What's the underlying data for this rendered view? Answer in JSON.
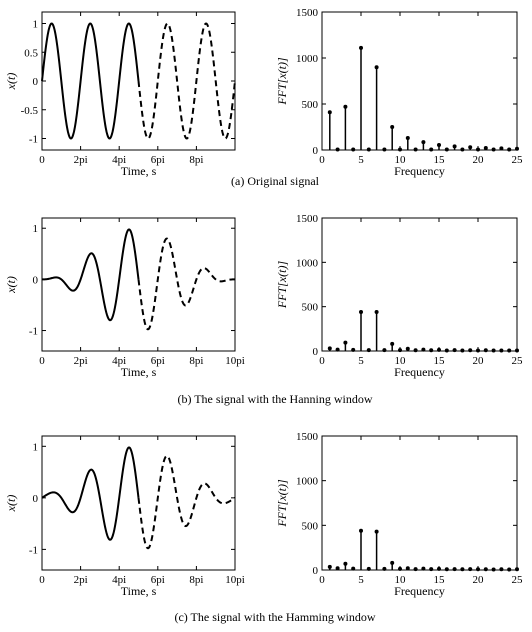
{
  "captions": {
    "a": "(a) Original signal",
    "b": "(b) The signal with the Hanning window",
    "c": "(c) The signal with the Hamming window"
  },
  "colors": {
    "line": "#000000",
    "axes": "#000000",
    "background": "#ffffff"
  },
  "chart_data": [
    {
      "type": "line",
      "id": "time-original",
      "xlabel": "Time, s",
      "ylabel": "x(t)",
      "xlim": [
        0,
        31.4159
      ],
      "ylim": [
        -1.2,
        1.2
      ],
      "xticks": [
        0,
        6.2832,
        12.5664,
        18.8496,
        25.1327
      ],
      "xticklabels": [
        "0",
        "2pi",
        "4pi",
        "6pi",
        "8pi"
      ],
      "yticks": [
        -1,
        -0.5,
        0,
        0.5,
        1
      ],
      "yticklabels": [
        "-1",
        "-0.5",
        "0",
        "0.5",
        "1"
      ],
      "series": [
        {
          "style": "solid",
          "function": "sin(t)",
          "window": "none",
          "x_range": [
            0,
            15.708
          ]
        },
        {
          "style": "dashed",
          "function": "sin(t)",
          "window": "none",
          "x_range": [
            15.708,
            31.4159
          ]
        }
      ]
    },
    {
      "type": "stem",
      "id": "fft-original",
      "xlabel": "Frequency",
      "ylabel": "FFT[x(t)]",
      "xlim": [
        0,
        25
      ],
      "ylim": [
        0,
        1500
      ],
      "xticks": [
        0,
        5,
        10,
        15,
        20,
        25
      ],
      "yticks": [
        0,
        500,
        1000,
        1500
      ],
      "x": [
        1,
        2,
        3,
        4,
        5,
        6,
        7,
        8,
        9,
        10,
        11,
        12,
        13,
        14,
        15,
        16,
        17,
        18,
        19,
        20,
        21,
        22,
        23,
        24,
        25
      ],
      "values": [
        410,
        5,
        470,
        5,
        1110,
        5,
        900,
        5,
        250,
        5,
        130,
        5,
        85,
        5,
        55,
        5,
        40,
        5,
        30,
        5,
        22,
        5,
        18,
        5,
        14
      ]
    },
    {
      "type": "line",
      "id": "time-hanning",
      "xlabel": "Time, s",
      "ylabel": "x(t)",
      "xlim": [
        0,
        31.4159
      ],
      "ylim": [
        -1.4,
        1.2
      ],
      "xticks": [
        0,
        6.2832,
        12.5664,
        18.8496,
        25.1327,
        31.4159
      ],
      "xticklabels": [
        "0",
        "2pi",
        "4pi",
        "6pi",
        "8pi",
        "10pi"
      ],
      "yticks": [
        -1,
        0,
        1
      ],
      "yticklabels": [
        "-1",
        "0",
        "1"
      ],
      "series": [
        {
          "style": "solid",
          "function": "sin(t)",
          "window": "hanning",
          "x_range": [
            0,
            15.708
          ]
        },
        {
          "style": "dashed",
          "function": "sin(t)",
          "window": "hanning",
          "x_range": [
            15.708,
            31.4159
          ]
        }
      ]
    },
    {
      "type": "stem",
      "id": "fft-hanning",
      "xlabel": "Frequency",
      "ylabel": "FFT[x(t)]",
      "xlim": [
        0,
        25
      ],
      "ylim": [
        0,
        1500
      ],
      "xticks": [
        0,
        5,
        10,
        15,
        20,
        25
      ],
      "yticks": [
        0,
        500,
        1000,
        1500
      ],
      "x": [
        1,
        2,
        3,
        4,
        5,
        6,
        7,
        8,
        9,
        10,
        11,
        12,
        13,
        14,
        15,
        16,
        17,
        18,
        19,
        20,
        21,
        22,
        23,
        24,
        25
      ],
      "values": [
        30,
        15,
        95,
        12,
        440,
        10,
        440,
        10,
        80,
        10,
        25,
        8,
        15,
        8,
        12,
        6,
        10,
        6,
        8,
        6,
        8,
        5,
        6,
        5,
        6
      ]
    },
    {
      "type": "line",
      "id": "time-hamming",
      "xlabel": "Time, s",
      "ylabel": "x(t)",
      "xlim": [
        0,
        31.4159
      ],
      "ylim": [
        -1.4,
        1.2
      ],
      "xticks": [
        0,
        6.2832,
        12.5664,
        18.8496,
        25.1327,
        31.4159
      ],
      "xticklabels": [
        "0",
        "2pi",
        "4pi",
        "6pi",
        "8pi",
        "10pi"
      ],
      "yticks": [
        -1,
        0,
        1
      ],
      "yticklabels": [
        "-1",
        "0",
        "1"
      ],
      "series": [
        {
          "style": "solid",
          "function": "sin(t)",
          "window": "hamming",
          "x_range": [
            0,
            15.708
          ]
        },
        {
          "style": "dashed",
          "function": "sin(t)",
          "window": "hamming",
          "x_range": [
            15.708,
            31.4159
          ]
        }
      ]
    },
    {
      "type": "stem",
      "id": "fft-hamming",
      "xlabel": "Frequency",
      "ylabel": "FFT[x(t)]",
      "xlim": [
        0,
        25
      ],
      "ylim": [
        0,
        1500
      ],
      "xticks": [
        0,
        5,
        10,
        15,
        20,
        25
      ],
      "yticks": [
        0,
        500,
        1000,
        1500
      ],
      "x": [
        1,
        2,
        3,
        4,
        5,
        6,
        7,
        8,
        9,
        10,
        11,
        12,
        13,
        14,
        15,
        16,
        17,
        18,
        19,
        20,
        21,
        22,
        23,
        24,
        25
      ],
      "values": [
        35,
        20,
        70,
        15,
        440,
        12,
        430,
        12,
        80,
        12,
        20,
        10,
        15,
        10,
        12,
        8,
        10,
        8,
        10,
        8,
        8,
        6,
        8,
        6,
        8
      ]
    }
  ]
}
